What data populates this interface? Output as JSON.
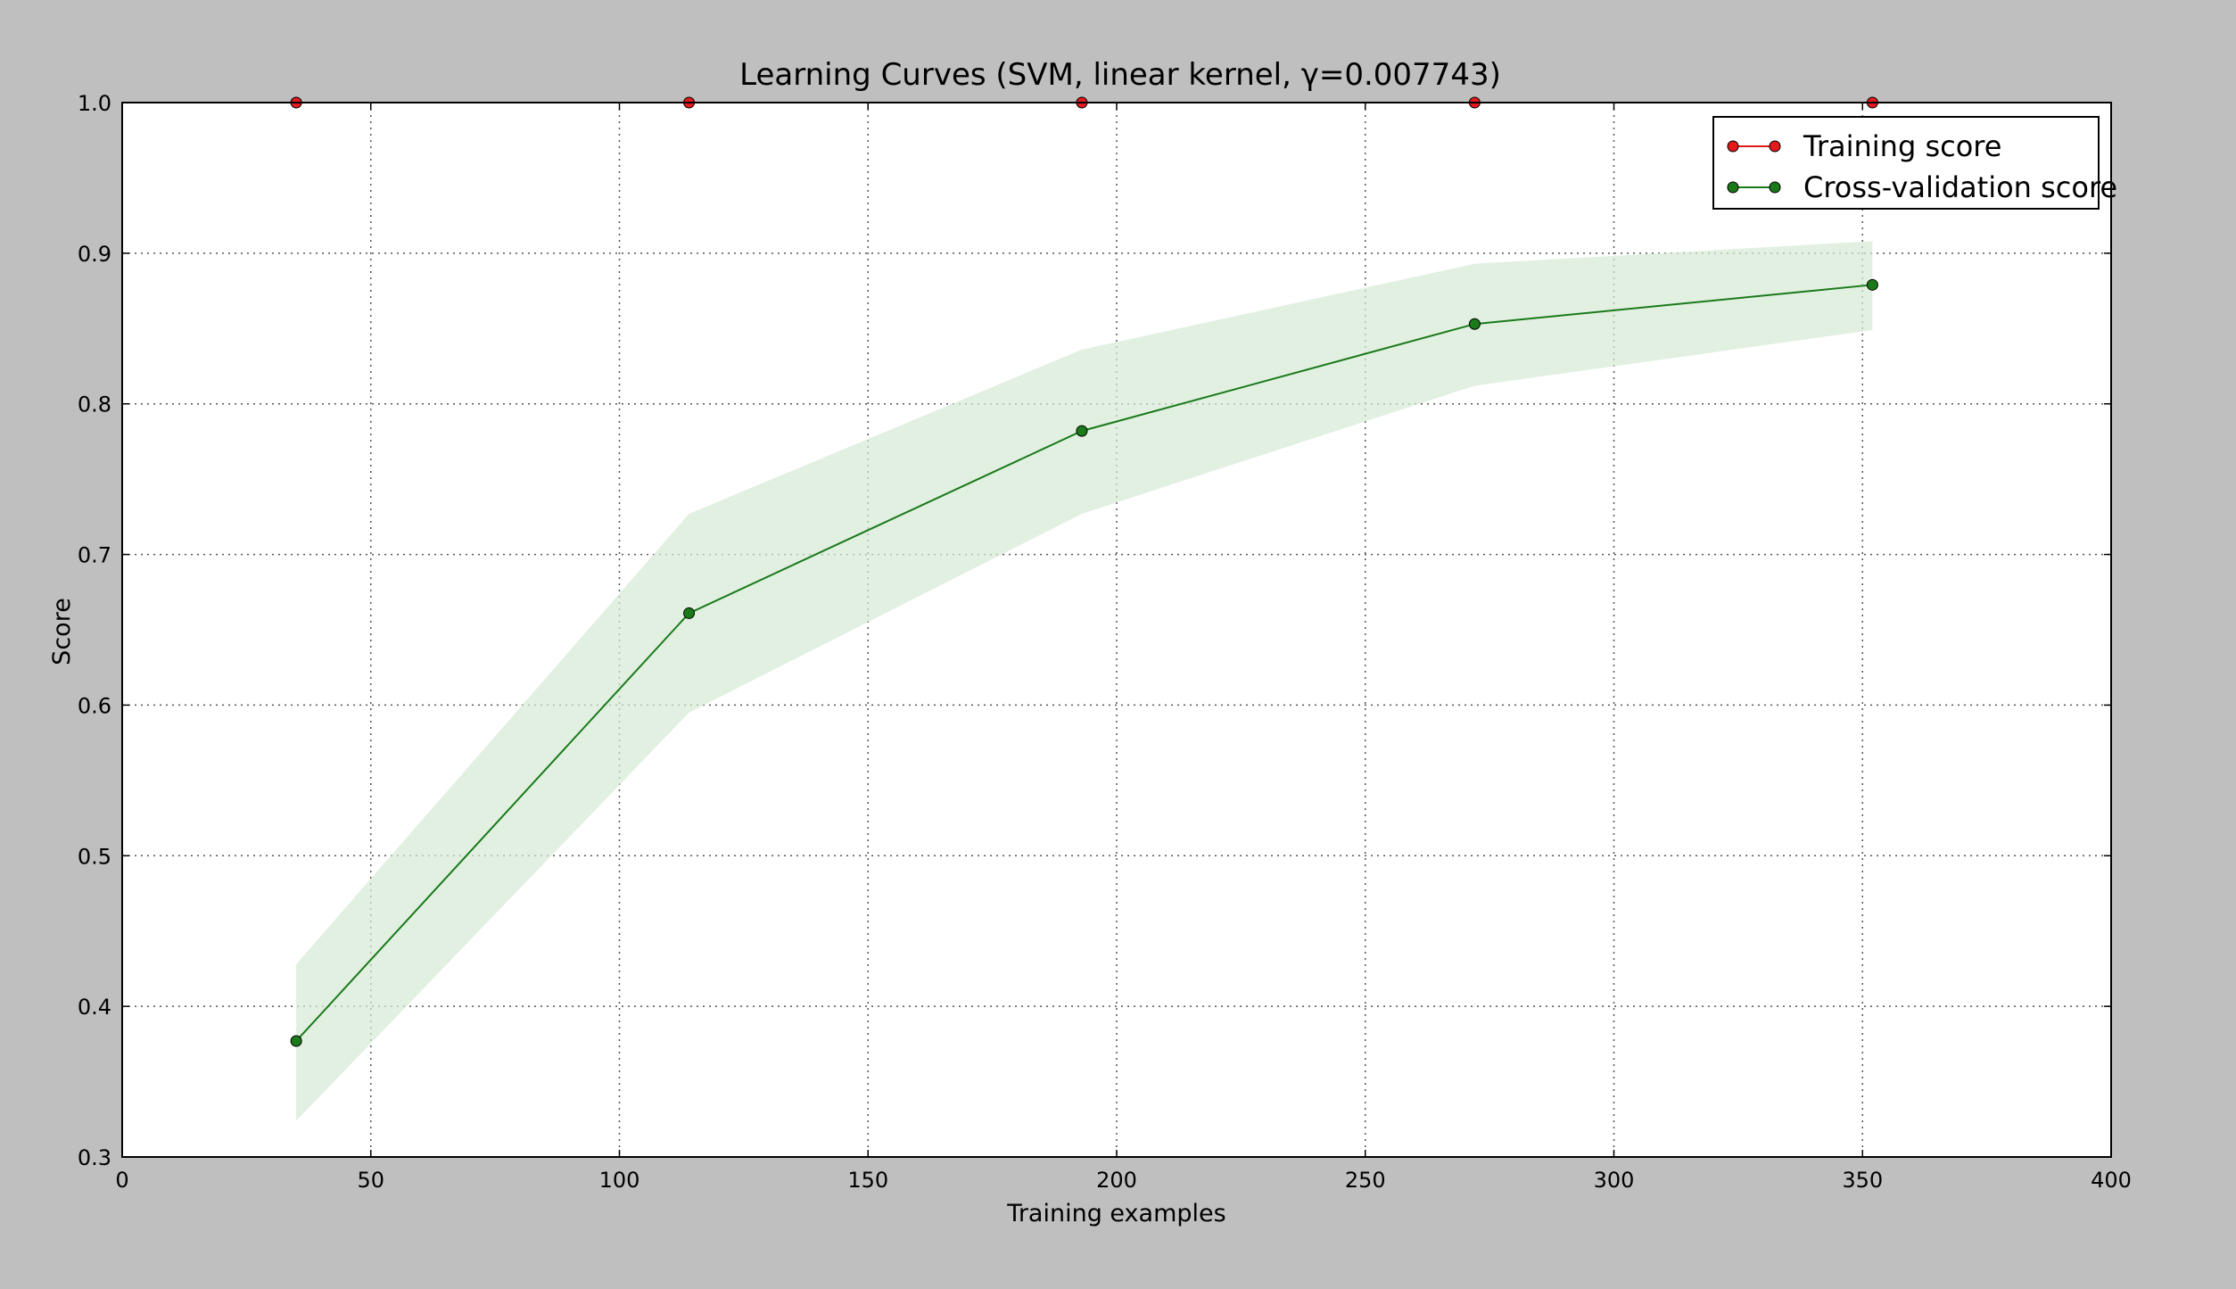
{
  "chart_data": {
    "type": "line",
    "title": "Learning Curves (SVM, linear kernel, γ=0.007743)",
    "xlabel": "Training examples",
    "ylabel": "Score",
    "xlim": [
      0,
      400
    ],
    "ylim": [
      0.3,
      1.0
    ],
    "xticks": [
      0,
      50,
      100,
      150,
      200,
      250,
      300,
      350,
      400
    ],
    "yticks": [
      0.3,
      0.4,
      0.5,
      0.6,
      0.7,
      0.8,
      0.9,
      1.0
    ],
    "xtick_labels": [
      "0",
      "50",
      "100",
      "150",
      "200",
      "250",
      "300",
      "350",
      "400"
    ],
    "ytick_labels": [
      "0.3",
      "0.4",
      "0.5",
      "0.6",
      "0.7",
      "0.8",
      "0.9",
      "1.0"
    ],
    "grid": true,
    "legend_position": "top-right",
    "x": [
      35,
      114,
      193,
      272,
      352
    ],
    "series": [
      {
        "name": "Training score",
        "color": "#e31a1c",
        "values": [
          1.0,
          1.0,
          1.0,
          1.0,
          1.0
        ],
        "std_upper": [
          1.0,
          1.0,
          1.0,
          1.0,
          1.0
        ],
        "std_lower": [
          1.0,
          1.0,
          1.0,
          1.0,
          1.0
        ]
      },
      {
        "name": "Cross-validation score",
        "color": "#1a7a1a",
        "band_color": "#d6ead6",
        "values": [
          0.377,
          0.661,
          0.782,
          0.853,
          0.879
        ],
        "std_upper": [
          0.428,
          0.727,
          0.836,
          0.893,
          0.908
        ],
        "std_lower": [
          0.324,
          0.595,
          0.727,
          0.812,
          0.849
        ]
      }
    ]
  }
}
